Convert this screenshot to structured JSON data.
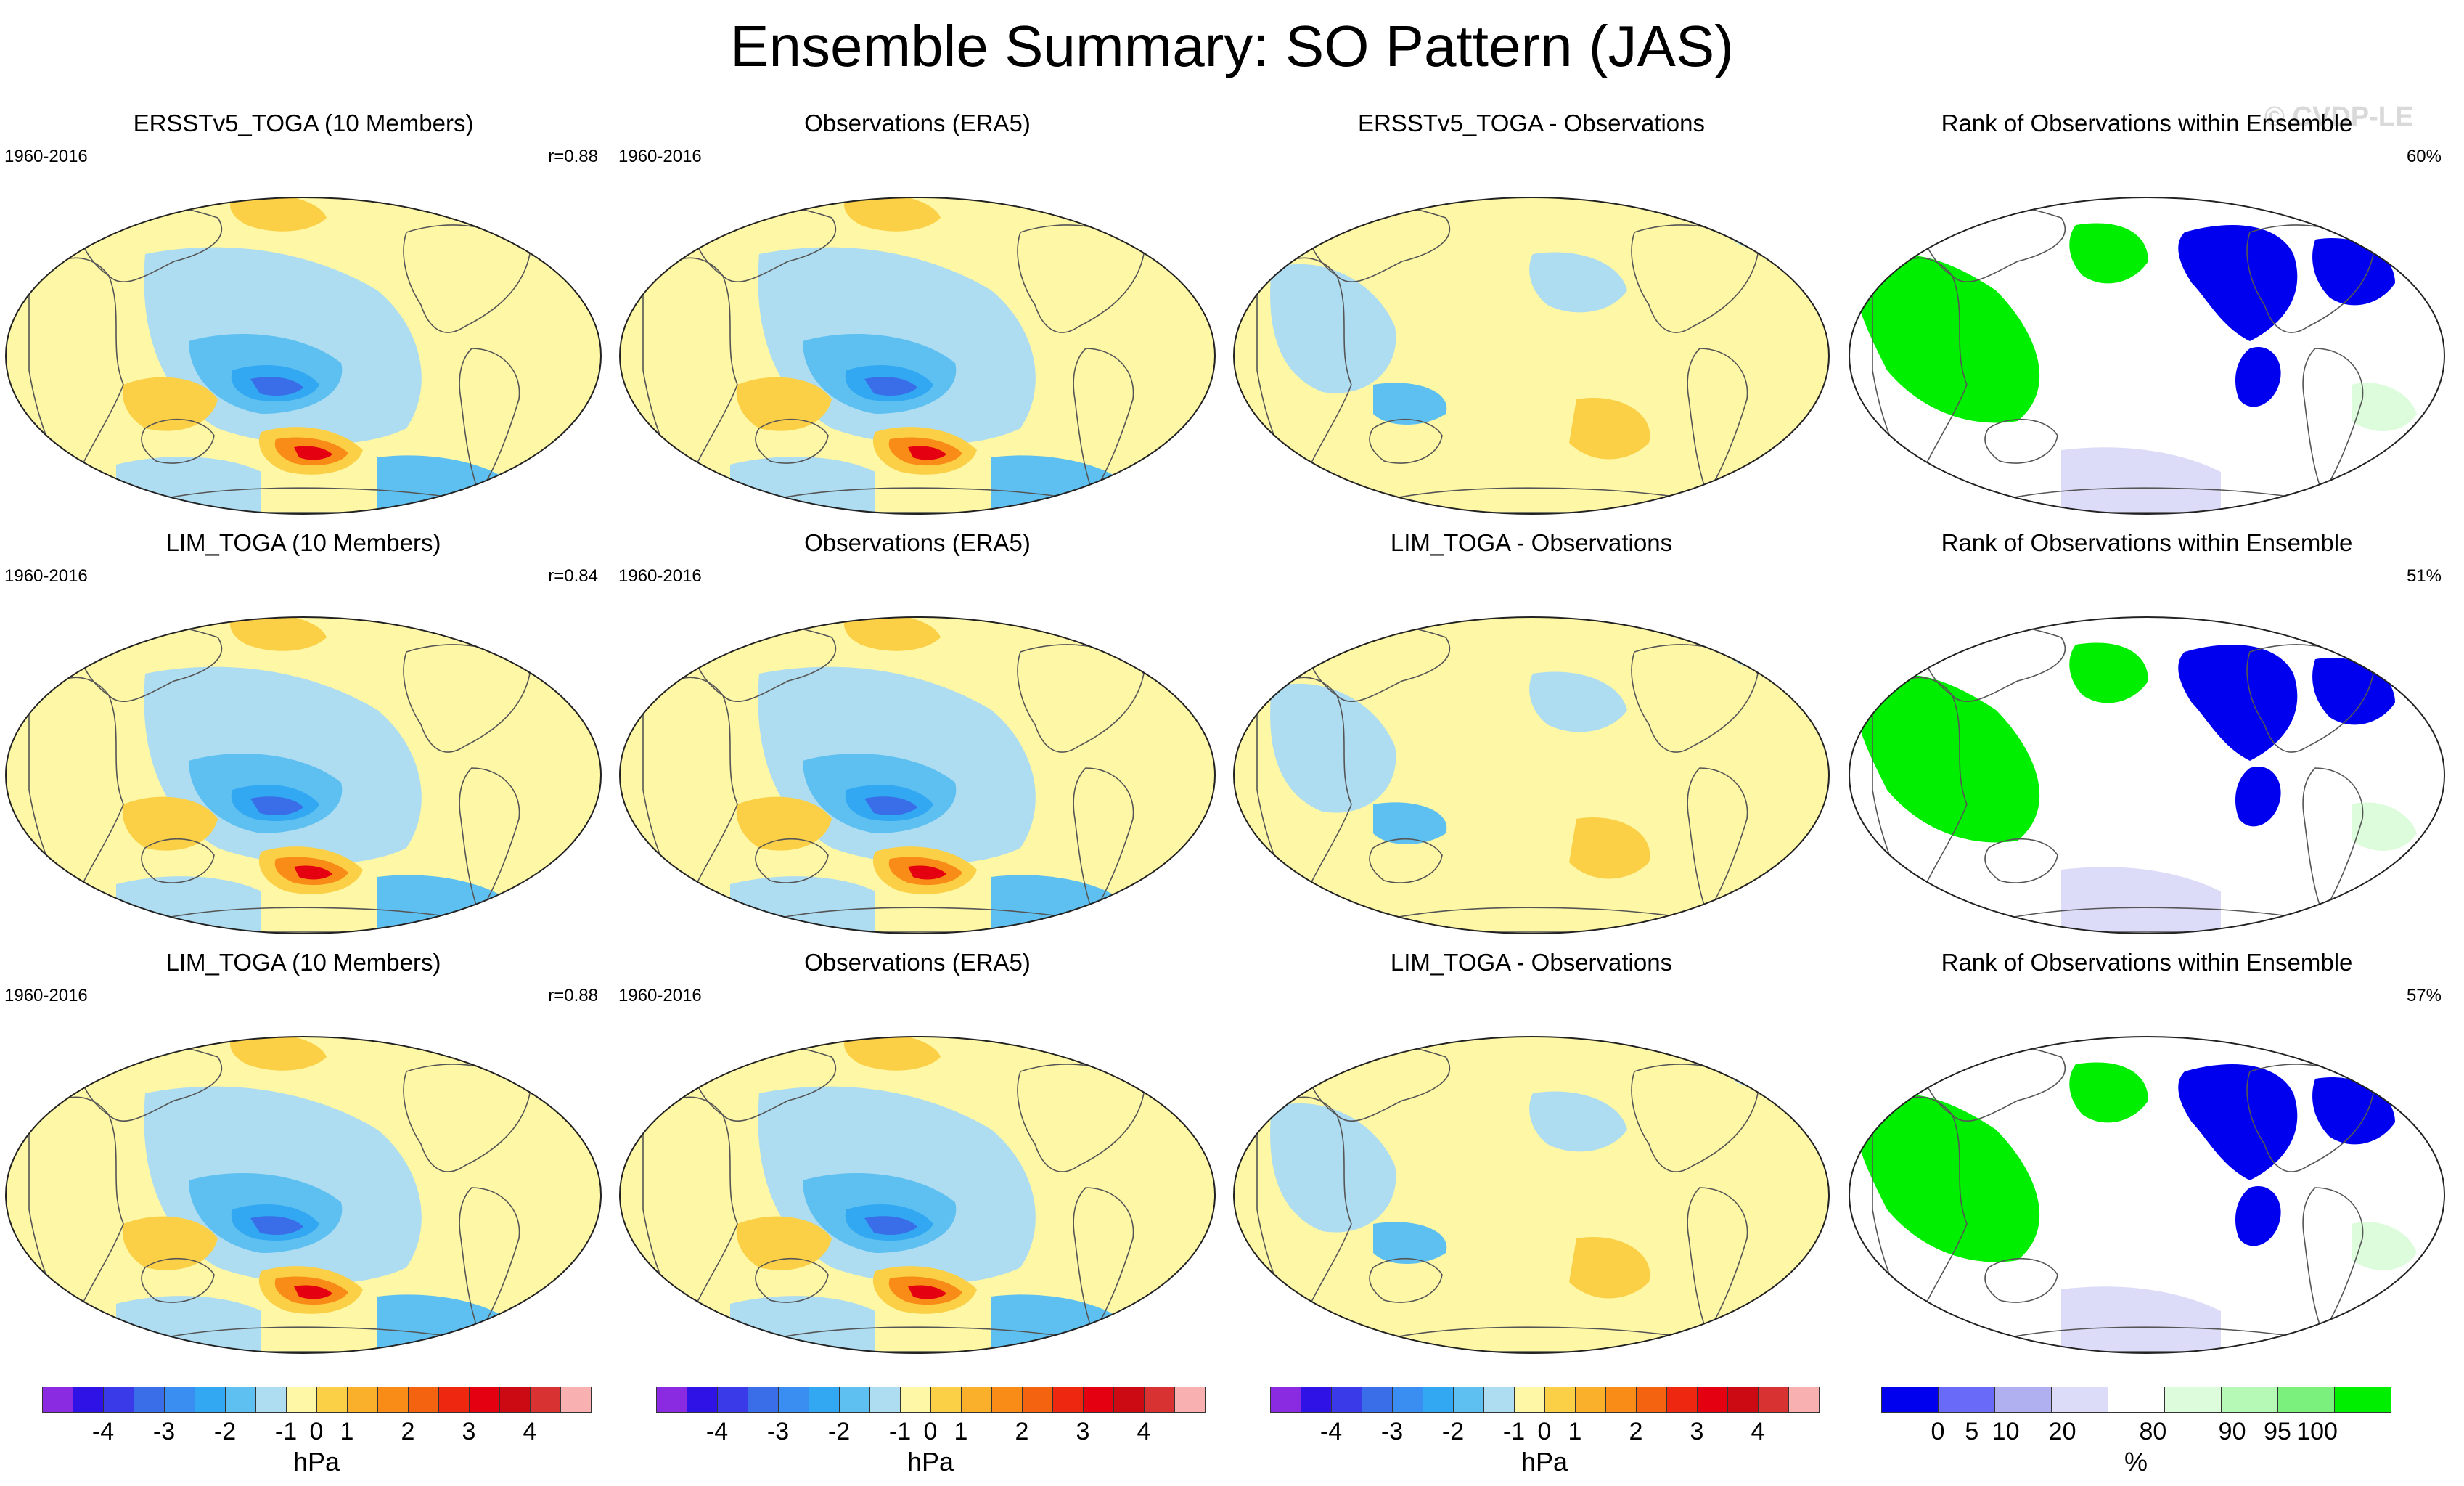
{
  "title": "Ensemble Summary: SO Pattern (JAS)",
  "watermark": "© CVDP-LE",
  "colors": {
    "land_outline": "#555555",
    "globe_outline": "#222222"
  },
  "rows": [
    {
      "model": {
        "title": "ERSSTv5_TOGA (10 Members)",
        "period": "1960-2016",
        "correlation": "r=0.88"
      },
      "obs": {
        "title": "Observations (ERA5)",
        "period": "1960-2016"
      },
      "diff": {
        "title": "ERSSTv5_TOGA - Observations"
      },
      "rank": {
        "title": "Rank of Observations within Ensemble",
        "percent": "60%"
      }
    },
    {
      "model": {
        "title": "LIM_TOGA (10 Members)",
        "period": "1960-2016",
        "correlation": "r=0.84"
      },
      "obs": {
        "title": "Observations (ERA5)",
        "period": "1960-2016"
      },
      "diff": {
        "title": "LIM_TOGA - Observations"
      },
      "rank": {
        "title": "Rank of Observations within Ensemble",
        "percent": "51%"
      }
    },
    {
      "model": {
        "title": "LIM_TOGA (10 Members)",
        "period": "1960-2016",
        "correlation": "r=0.88"
      },
      "obs": {
        "title": "Observations (ERA5)",
        "period": "1960-2016"
      },
      "diff": {
        "title": "LIM_TOGA - Observations"
      },
      "rank": {
        "title": "Rank of Observations within Ensemble",
        "percent": "57%"
      }
    }
  ],
  "colorbar_hpa": {
    "unit": "hPa",
    "ticks": [
      "-4",
      "-3",
      "-2",
      "-1",
      "0",
      "1",
      "2",
      "3",
      "4"
    ],
    "colors": [
      "#8a2be2",
      "#2e12e6",
      "#3a3ae8",
      "#3a6ee8",
      "#3a8ef2",
      "#32a8f2",
      "#5ec0f0",
      "#aedcf0",
      "#fdf7a6",
      "#fbd046",
      "#fbb02c",
      "#f88c16",
      "#f46410",
      "#ee2810",
      "#e40010",
      "#cc0a14",
      "#d83232",
      "#f8b0b0"
    ]
  },
  "colorbar_rank": {
    "unit": "%",
    "ticks": [
      "0",
      "5",
      "10",
      "20",
      "80",
      "90",
      "95",
      "100"
    ],
    "colors": [
      "#0000ee",
      "#6a6af8",
      "#b0b0f0",
      "#dcdcf8",
      "#ffffff",
      "#dcfcdc",
      "#b6f8b6",
      "#7cf07c",
      "#00ee00"
    ]
  },
  "map_field_colors": {
    "positive_weak": "#fdf7a6",
    "positive_mod": "#fbd046",
    "positive_strong": "#f88c16",
    "positive_max": "#e40010",
    "negative_weak": "#aedcf0",
    "negative_mod": "#5ec0f0",
    "negative_strong": "#32a8f2",
    "negative_max": "#3a6ee8"
  },
  "rank_field_colors": {
    "low": "#0000ee",
    "low_mid": "#dcdcf8",
    "mid": "#ffffff",
    "high": "#00ee00",
    "high_mid": "#dcfcdc"
  }
}
